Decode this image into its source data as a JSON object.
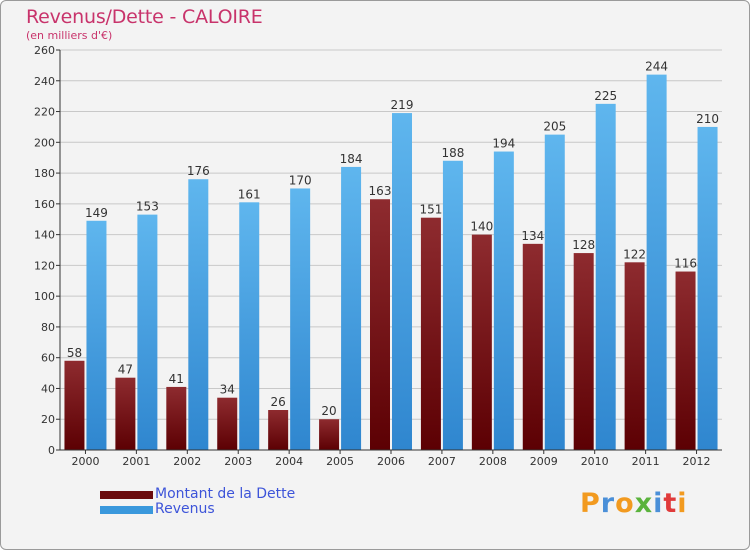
{
  "title": "Revenus/Dette - CALOIRE",
  "subtitle": "(en milliers d'€)",
  "chart_data": {
    "type": "bar",
    "categories": [
      "2000",
      "2001",
      "2002",
      "2003",
      "2004",
      "2005",
      "2006",
      "2007",
      "2008",
      "2009",
      "2010",
      "2011",
      "2012"
    ],
    "series": [
      {
        "name": "Montant de la Dette",
        "color": "#7a0d10",
        "values": [
          58,
          47,
          41,
          34,
          26,
          20,
          163,
          151,
          140,
          134,
          128,
          122,
          116
        ]
      },
      {
        "name": "Revenus",
        "color": "#3f9ee0",
        "values": [
          149,
          153,
          176,
          161,
          170,
          184,
          219,
          188,
          194,
          205,
          225,
          244,
          210
        ]
      }
    ],
    "ylim": [
      0,
      260
    ],
    "yticks": [
      0,
      20,
      40,
      60,
      80,
      100,
      120,
      140,
      160,
      180,
      200,
      220,
      240,
      260
    ],
    "grid": true,
    "legend": "bottom-left"
  },
  "legend": {
    "items": [
      {
        "label": "Montant de la Dette",
        "color": "#6b0a0c"
      },
      {
        "label": "Revenus",
        "color": "#3a98dc"
      }
    ]
  },
  "logo": {
    "letters": [
      "P",
      "r",
      "o",
      "x",
      "i",
      "t",
      "i"
    ],
    "colors": [
      "#f29a1f",
      "#4a8fd8",
      "#f29a1f",
      "#5ab33c",
      "#4a8fd8",
      "#e03a3a",
      "#f29a1f"
    ]
  }
}
